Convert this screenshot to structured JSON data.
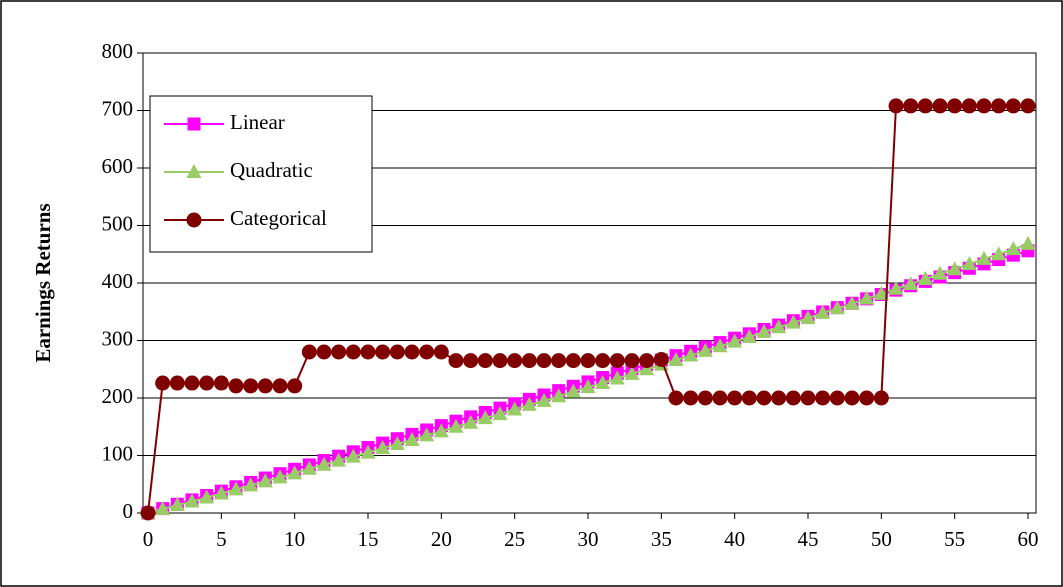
{
  "chart_data": {
    "type": "line",
    "y_label": "Earnings Returns",
    "x": [
      0,
      1,
      2,
      3,
      4,
      5,
      6,
      7,
      8,
      9,
      10,
      11,
      12,
      13,
      14,
      15,
      16,
      17,
      18,
      19,
      20,
      21,
      22,
      23,
      24,
      25,
      26,
      27,
      28,
      29,
      30,
      31,
      32,
      33,
      34,
      35,
      36,
      37,
      38,
      39,
      40,
      41,
      42,
      43,
      44,
      45,
      46,
      47,
      48,
      49,
      50,
      51,
      52,
      53,
      54,
      55,
      56,
      57,
      58,
      59,
      60
    ],
    "series": [
      {
        "name": "Linear",
        "color": "#ff00ff",
        "marker": "square",
        "values": [
          0,
          7.6,
          15.2,
          22.8,
          30.4,
          38,
          45.6,
          53.2,
          60.8,
          68.4,
          76,
          83.6,
          91.2,
          98.8,
          106.4,
          114,
          121.6,
          129.2,
          136.8,
          144.4,
          152,
          159.6,
          167.2,
          174.8,
          182.4,
          190,
          197.6,
          205.2,
          212.8,
          220.4,
          228,
          235.6,
          243.2,
          250.8,
          258.4,
          266,
          273.6,
          281.2,
          288.8,
          296.4,
          304,
          311.6,
          319.2,
          326.8,
          334.4,
          342,
          349.6,
          357.2,
          364.8,
          372.4,
          380,
          387.6,
          395.2,
          402.8,
          410.4,
          418,
          425.6,
          433.2,
          440.8,
          448.4,
          456
        ]
      },
      {
        "name": "Quadratic",
        "color": "#99cc66",
        "marker": "triangle",
        "values": [
          0,
          7,
          14,
          20,
          27,
          34,
          41,
          48,
          55,
          62,
          69,
          77,
          84,
          91,
          98,
          105,
          113,
          120,
          127,
          135,
          142,
          150,
          157,
          165,
          172,
          180,
          188,
          195,
          203,
          211,
          219,
          226,
          234,
          242,
          250,
          258,
          266,
          274,
          282,
          290,
          298,
          306,
          315,
          323,
          331,
          339,
          348,
          356,
          364,
          373,
          381,
          390,
          398,
          407,
          416,
          424,
          433,
          442,
          450,
          459,
          468
        ]
      },
      {
        "name": "Categorical",
        "color": "#800000",
        "marker": "circle",
        "values": [
          0,
          226,
          226,
          226,
          226,
          226,
          221,
          221,
          221,
          221,
          221,
          280,
          280,
          280,
          280,
          280,
          280,
          280,
          280,
          280,
          280,
          265,
          265,
          265,
          265,
          265,
          265,
          265,
          265,
          265,
          265,
          265,
          265,
          265,
          265,
          267,
          200,
          200,
          200,
          200,
          200,
          200,
          200,
          200,
          200,
          200,
          200,
          200,
          200,
          200,
          200,
          708,
          708,
          708,
          708,
          708,
          708,
          708,
          708,
          708,
          708
        ]
      }
    ],
    "xlim": [
      0,
      60
    ],
    "xticks": [
      0,
      5,
      10,
      15,
      20,
      25,
      30,
      35,
      40,
      45,
      50,
      55,
      60
    ],
    "ylim": [
      0,
      800
    ],
    "yticks": [
      0,
      100,
      200,
      300,
      400,
      500,
      600,
      700,
      800
    ],
    "grid": true,
    "legend": "top-left"
  }
}
